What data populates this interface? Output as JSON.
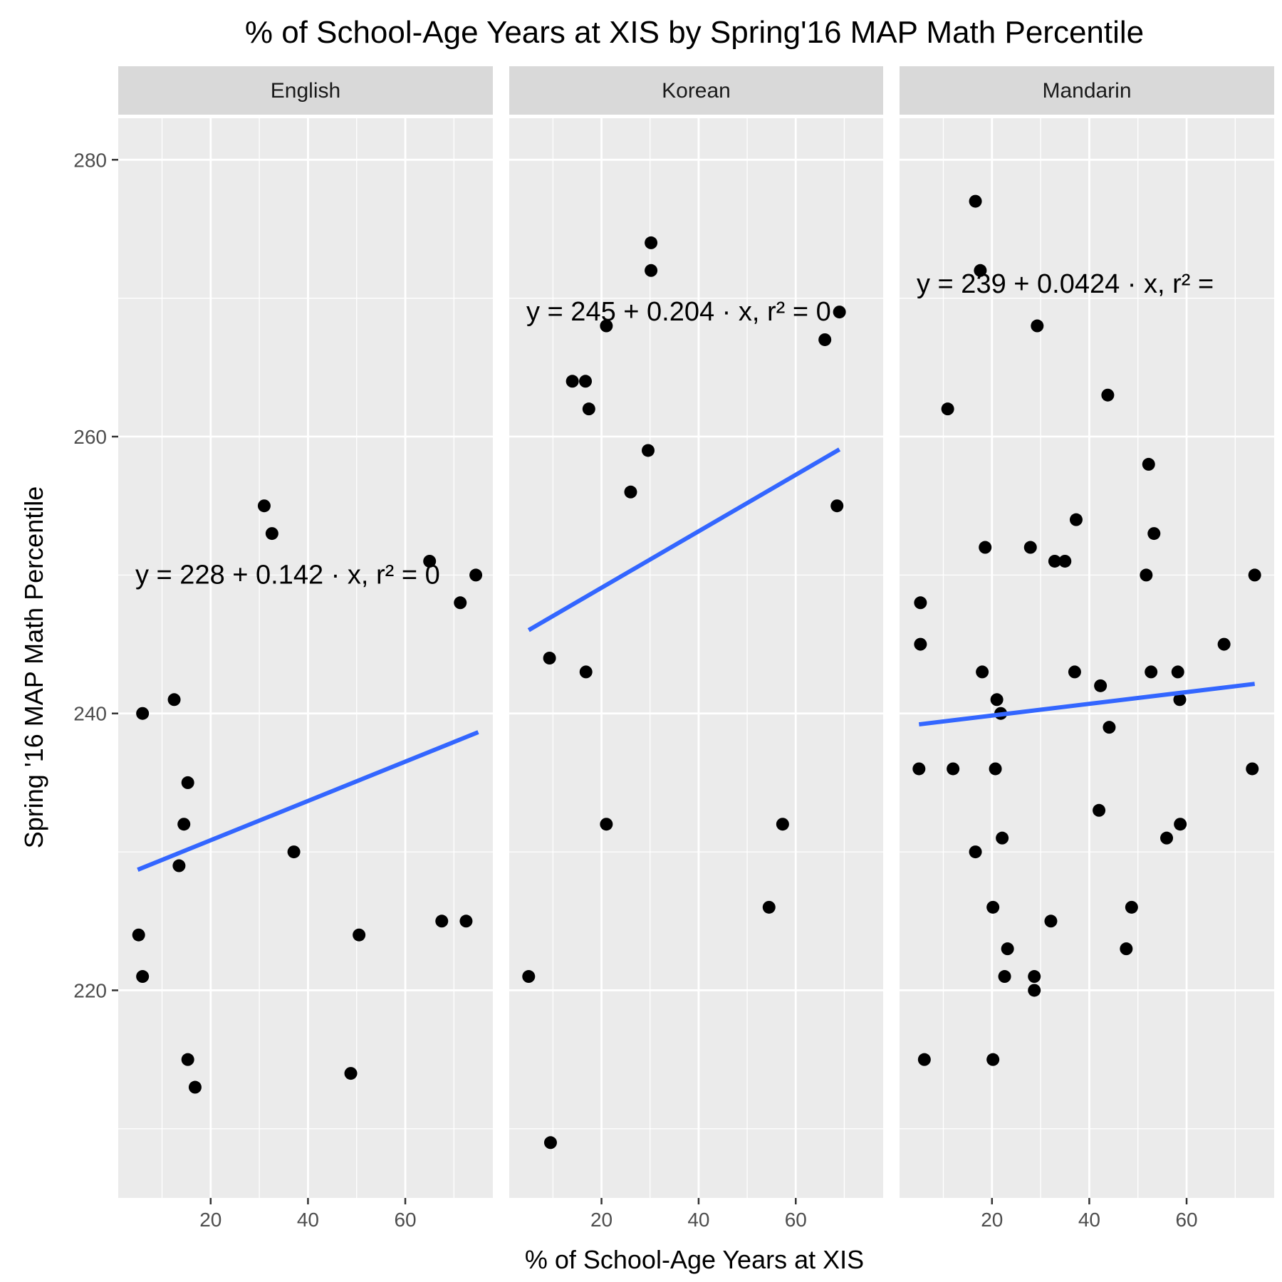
{
  "chart_data": {
    "type": "scatter",
    "title": "% of School-Age Years at XIS by Spring'16 MAP Math Percentile",
    "xlabel": "% of School-Age Years at XIS",
    "ylabel": "Spring '16 MAP Math Percentile",
    "xlim": [
      1,
      78
    ],
    "ylim": [
      205,
      283
    ],
    "x_ticks": [
      20,
      40,
      60
    ],
    "y_ticks": [
      220,
      240,
      260,
      280
    ],
    "grid": true,
    "facets": [
      {
        "name": "English",
        "equation": "y = 228 + 0.142 · x,  r² = 0",
        "fit": {
          "intercept": 228,
          "slope": 0.142,
          "x_range": [
            5,
            75
          ]
        },
        "points": [
          {
            "x": 5.2,
            "y": 224
          },
          {
            "x": 6.0,
            "y": 240
          },
          {
            "x": 6.0,
            "y": 221
          },
          {
            "x": 12.5,
            "y": 241
          },
          {
            "x": 13.5,
            "y": 229
          },
          {
            "x": 14.5,
            "y": 232
          },
          {
            "x": 15.3,
            "y": 235
          },
          {
            "x": 15.3,
            "y": 215
          },
          {
            "x": 16.8,
            "y": 213
          },
          {
            "x": 31.0,
            "y": 255
          },
          {
            "x": 32.6,
            "y": 253
          },
          {
            "x": 37.1,
            "y": 230
          },
          {
            "x": 48.8,
            "y": 214
          },
          {
            "x": 50.5,
            "y": 224
          },
          {
            "x": 65.0,
            "y": 251
          },
          {
            "x": 67.5,
            "y": 225
          },
          {
            "x": 71.3,
            "y": 248
          },
          {
            "x": 72.5,
            "y": 225
          },
          {
            "x": 74.5,
            "y": 250
          }
        ]
      },
      {
        "name": "Korean",
        "equation": "y = 245 + 0.204 · x,  r² = 0",
        "fit": {
          "intercept": 245,
          "slope": 0.204,
          "x_range": [
            5,
            69
          ]
        },
        "points": [
          {
            "x": 5.0,
            "y": 221
          },
          {
            "x": 9.3,
            "y": 244
          },
          {
            "x": 9.5,
            "y": 209
          },
          {
            "x": 14.0,
            "y": 264
          },
          {
            "x": 16.7,
            "y": 264
          },
          {
            "x": 16.8,
            "y": 243
          },
          {
            "x": 17.4,
            "y": 262
          },
          {
            "x": 21.0,
            "y": 268
          },
          {
            "x": 21.0,
            "y": 232
          },
          {
            "x": 26.0,
            "y": 256
          },
          {
            "x": 29.6,
            "y": 259
          },
          {
            "x": 30.2,
            "y": 274
          },
          {
            "x": 30.2,
            "y": 272
          },
          {
            "x": 54.5,
            "y": 226
          },
          {
            "x": 57.3,
            "y": 232
          },
          {
            "x": 66.0,
            "y": 267
          },
          {
            "x": 68.5,
            "y": 255
          },
          {
            "x": 69.0,
            "y": 269
          }
        ]
      },
      {
        "name": "Mandarin",
        "equation": "y = 239 + 0.0424 · x,  r² =",
        "fit": {
          "intercept": 239,
          "slope": 0.0424,
          "x_range": [
            5,
            74
          ]
        },
        "points": [
          {
            "x": 5.0,
            "y": 236
          },
          {
            "x": 5.3,
            "y": 248
          },
          {
            "x": 5.3,
            "y": 245
          },
          {
            "x": 6.1,
            "y": 215
          },
          {
            "x": 10.9,
            "y": 262
          },
          {
            "x": 12.0,
            "y": 236
          },
          {
            "x": 16.6,
            "y": 277
          },
          {
            "x": 16.6,
            "y": 230
          },
          {
            "x": 17.6,
            "y": 272
          },
          {
            "x": 18.0,
            "y": 243
          },
          {
            "x": 18.6,
            "y": 252
          },
          {
            "x": 20.2,
            "y": 226
          },
          {
            "x": 20.2,
            "y": 215
          },
          {
            "x": 20.7,
            "y": 236
          },
          {
            "x": 21.0,
            "y": 241
          },
          {
            "x": 21.8,
            "y": 240
          },
          {
            "x": 22.1,
            "y": 231
          },
          {
            "x": 22.6,
            "y": 221
          },
          {
            "x": 23.2,
            "y": 223
          },
          {
            "x": 27.9,
            "y": 252
          },
          {
            "x": 28.7,
            "y": 221
          },
          {
            "x": 28.7,
            "y": 220
          },
          {
            "x": 29.3,
            "y": 268
          },
          {
            "x": 32.1,
            "y": 225
          },
          {
            "x": 32.9,
            "y": 251
          },
          {
            "x": 35.0,
            "y": 251
          },
          {
            "x": 37.0,
            "y": 243
          },
          {
            "x": 37.3,
            "y": 254
          },
          {
            "x": 42.0,
            "y": 233
          },
          {
            "x": 42.3,
            "y": 242
          },
          {
            "x": 43.8,
            "y": 263
          },
          {
            "x": 44.1,
            "y": 239
          },
          {
            "x": 47.6,
            "y": 223
          },
          {
            "x": 48.7,
            "y": 226
          },
          {
            "x": 51.7,
            "y": 250
          },
          {
            "x": 52.2,
            "y": 258
          },
          {
            "x": 52.7,
            "y": 243
          },
          {
            "x": 53.3,
            "y": 253
          },
          {
            "x": 55.9,
            "y": 231
          },
          {
            "x": 58.2,
            "y": 243
          },
          {
            "x": 58.6,
            "y": 241
          },
          {
            "x": 58.7,
            "y": 232
          },
          {
            "x": 67.7,
            "y": 245
          },
          {
            "x": 73.5,
            "y": 236
          },
          {
            "x": 74.0,
            "y": 250
          }
        ]
      }
    ]
  }
}
